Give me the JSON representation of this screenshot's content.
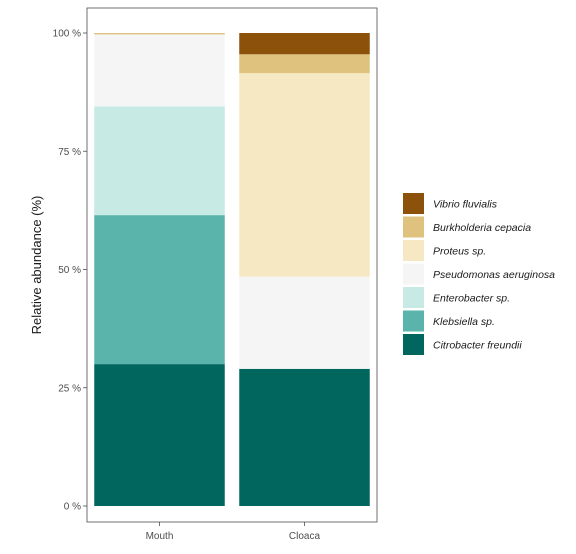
{
  "chart_data": {
    "type": "bar",
    "stacked": true,
    "categories": [
      "Mouth",
      "Cloaca"
    ],
    "ylabel": "Relative abundance (%)",
    "xlabel": "",
    "ylim": [
      0,
      100
    ],
    "yticks": [
      0,
      25,
      50,
      75,
      100
    ],
    "ytick_suffix": " %",
    "grid": false,
    "legend_position": "right",
    "series": [
      {
        "name": "Citrobacter freundii",
        "color": "#01665e",
        "values": [
          30,
          29
        ]
      },
      {
        "name": "Klebsiella sp.",
        "color": "#5ab4ac",
        "values": [
          31.5,
          0
        ]
      },
      {
        "name": "Enterobacter sp.",
        "color": "#c7eae5",
        "values": [
          23,
          0
        ]
      },
      {
        "name": "Pseudomonas aeruginosa",
        "color": "#f5f5f5",
        "values": [
          15.2,
          19.5
        ]
      },
      {
        "name": "Proteus sp.",
        "color": "#f6e8c3",
        "values": [
          0,
          43
        ]
      },
      {
        "name": "Burkholderia cepacia",
        "color": "#dfc27d",
        "values": [
          0.3,
          4
        ]
      },
      {
        "name": "Vibrio fluvialis",
        "color": "#8c510a",
        "values": [
          0,
          4.5
        ]
      }
    ]
  }
}
